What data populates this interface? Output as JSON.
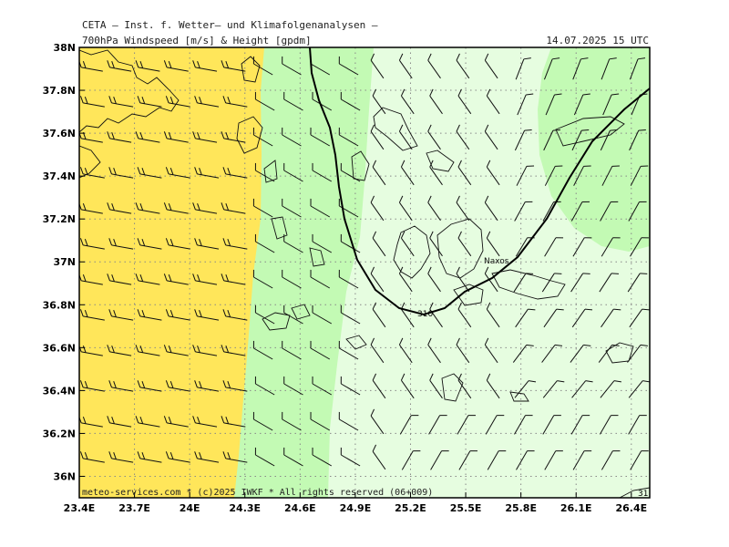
{
  "header": {
    "title": "CETA – Inst. f. Wetter– und Klimafolgenanalysen –",
    "subtitle": "700hPa Windspeed [m/s] & Height [gpdm]",
    "valid_time": "14.07.2025 15 UTC"
  },
  "footer": {
    "credit": "meteo-services.com * (c)2025 IWKF * All rights reserved (06+009)"
  },
  "map": {
    "lon_range": [
      23.4,
      26.5
    ],
    "lat_range": [
      35.9,
      38.0
    ],
    "lat_ticks": [
      "38N",
      "37.8N",
      "37.6N",
      "37.4N",
      "37.2N",
      "37N",
      "36.8N",
      "36.6N",
      "36.4N",
      "36.2N",
      "36N"
    ],
    "lon_ticks": [
      "23.4E",
      "23.7E",
      "24E",
      "24.3E",
      "24.6E",
      "24.9E",
      "25.2E",
      "25.5E",
      "25.8E",
      "26.1E",
      "26.4E"
    ],
    "place_labels": [
      "Naxos"
    ],
    "contour_labels": [
      "310",
      "31"
    ],
    "colors": {
      "wind_high": "#ffe65a",
      "wind_mid": "#c3fab4",
      "wind_low": "#e6fde0",
      "wind_edge": "#d2fac4"
    }
  }
}
